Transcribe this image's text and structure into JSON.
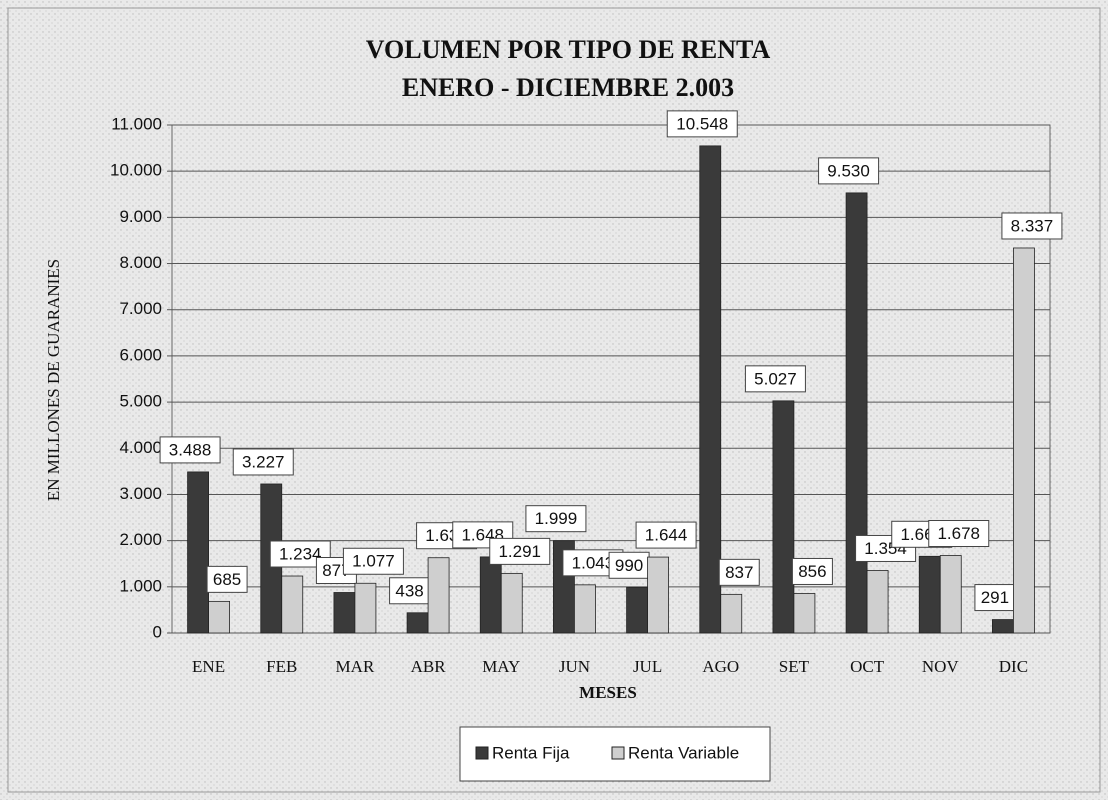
{
  "chart_data": {
    "type": "bar",
    "title": "VOLUMEN POR TIPO DE RENTA",
    "subtitle": "ENERO - DICIEMBRE 2.003",
    "y_label": "EN MILLONES DE GUARANIES",
    "x_label": "MESES",
    "categories": [
      "ENE",
      "FEB",
      "MAR",
      "ABR",
      "MAY",
      "JUN",
      "JUL",
      "AGO",
      "SET",
      "OCT",
      "NOV",
      "DIC"
    ],
    "series": [
      {
        "name": "Renta Fija",
        "color": "#3a3a3a",
        "values": [
          3488,
          3227,
          877,
          438,
          1648,
          1999,
          990,
          10548,
          5027,
          9530,
          1661,
          291
        ],
        "value_labels": [
          "3.488",
          "3.227",
          "877",
          "438",
          "1.648",
          "1.999",
          "990",
          "10.548",
          "5.027",
          "9.530",
          "1.661",
          "291"
        ]
      },
      {
        "name": "Renta Variable",
        "color": "#cfcfcf",
        "values": [
          685,
          1234,
          1077,
          1630,
          1291,
          1043,
          1644,
          837,
          856,
          1354,
          1678,
          8337
        ],
        "value_labels": [
          "685",
          "1.234",
          "1.077",
          "1.630",
          "1.291",
          "1.043",
          "1.644",
          "837",
          "856",
          "1.354",
          "1.678",
          "8.337"
        ]
      }
    ],
    "ylim": [
      0,
      11000
    ],
    "yticks": [
      0,
      {
        "value": 1000,
        "label": "1.000"
      },
      {
        "value": 2000,
        "label": "2.000"
      },
      {
        "value": 3000,
        "label": "3.000"
      },
      {
        "value": 4000,
        "label": "4.000"
      },
      {
        "value": 5000,
        "label": "5.000"
      },
      {
        "value": 6000,
        "label": "6.000"
      },
      {
        "value": 7000,
        "label": "7.000"
      },
      {
        "value": 8000,
        "label": "8.000"
      },
      {
        "value": 9000,
        "label": "9.000"
      },
      {
        "value": 10000,
        "label": "10.000"
      },
      {
        "value": 11000,
        "label": "11.000"
      }
    ],
    "grid": true,
    "legend": "bottom"
  }
}
